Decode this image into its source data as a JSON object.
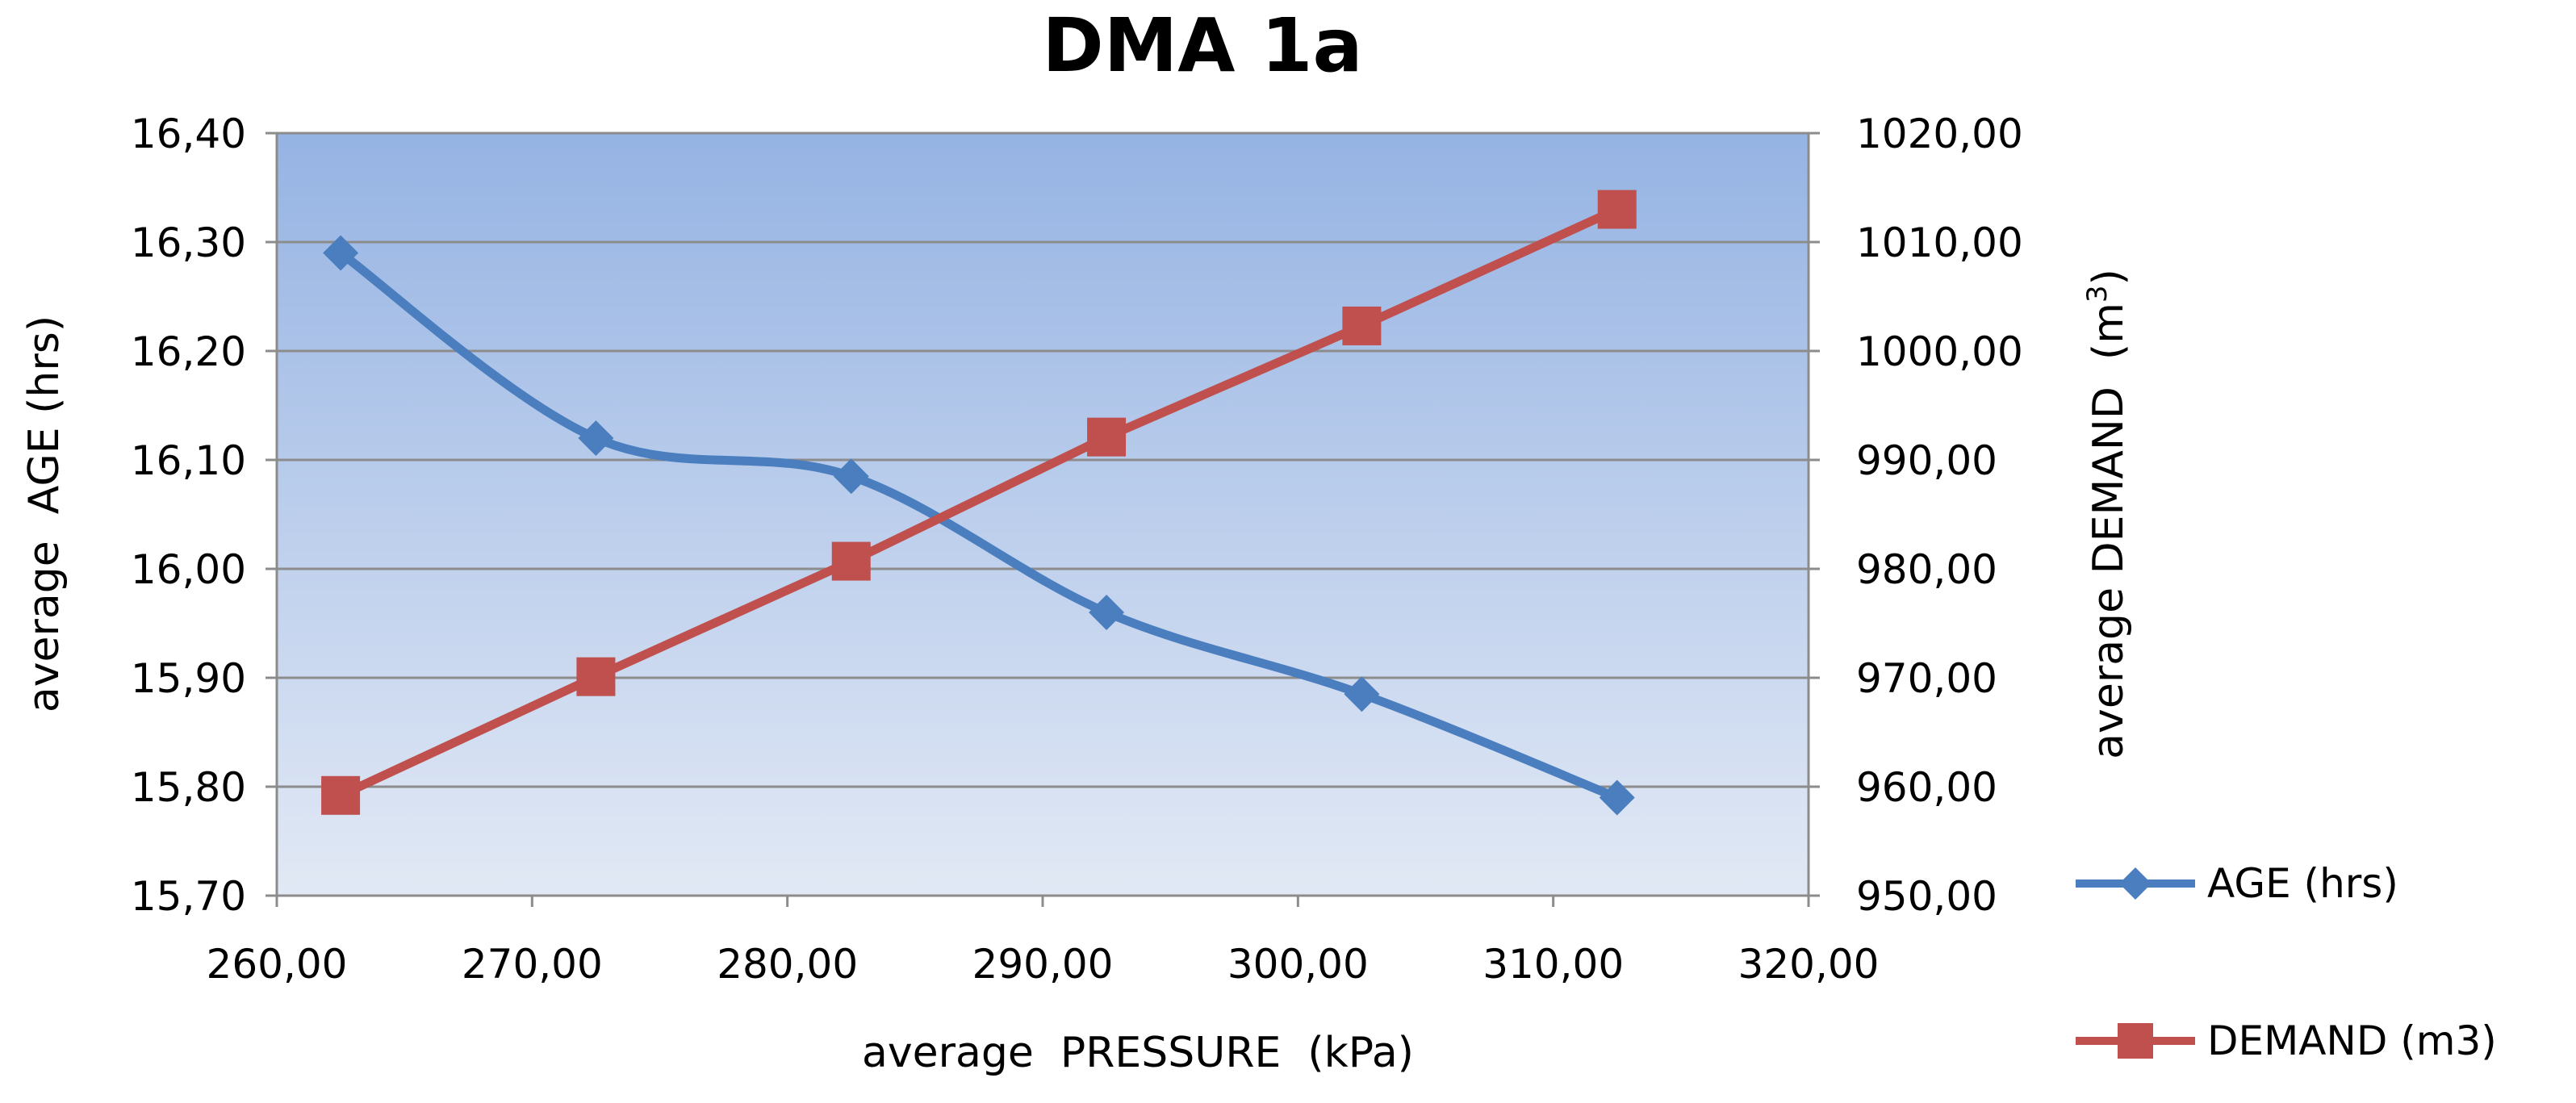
{
  "chart_data": {
    "type": "line",
    "title": "DMA 1a",
    "xlabel": "average  PRESSURE  (kPa)",
    "ylabel": "average  AGE (hrs)",
    "y2label_main": "average DEMAND  (m",
    "y2label_sup": "3",
    "y2label_end": ")",
    "xlim": [
      260,
      320
    ],
    "ylim": [
      15.7,
      16.4
    ],
    "y2lim": [
      950,
      1020
    ],
    "x_ticks": [
      "260,00",
      "270,00",
      "280,00",
      "290,00",
      "300,00",
      "310,00",
      "320,00"
    ],
    "y_ticks": [
      "15,70",
      "15,80",
      "15,90",
      "16,00",
      "16,10",
      "16,20",
      "16,30",
      "16,40"
    ],
    "y2_ticks": [
      "950,00",
      "960,00",
      "970,00",
      "980,00",
      "990,00",
      "1000,00",
      "1010,00",
      "1020,00"
    ],
    "grid": true,
    "legend_position": "right",
    "series": [
      {
        "name": "AGE (hrs)",
        "axis": "left",
        "marker": "diamond",
        "color": "#4a7ebf",
        "x": [
          262.5,
          272.5,
          282.5,
          292.5,
          302.5,
          312.5
        ],
        "values": [
          16.29,
          16.12,
          16.085,
          15.96,
          15.885,
          15.79
        ]
      },
      {
        "name": "DEMAND (m3)",
        "axis": "right",
        "marker": "square",
        "color": "#c0504d",
        "x": [
          262.5,
          272.5,
          282.5,
          292.5,
          302.5,
          312.5
        ],
        "values": [
          959.2,
          970.1,
          980.7,
          992.1,
          1002.3,
          1013.0
        ]
      }
    ]
  }
}
